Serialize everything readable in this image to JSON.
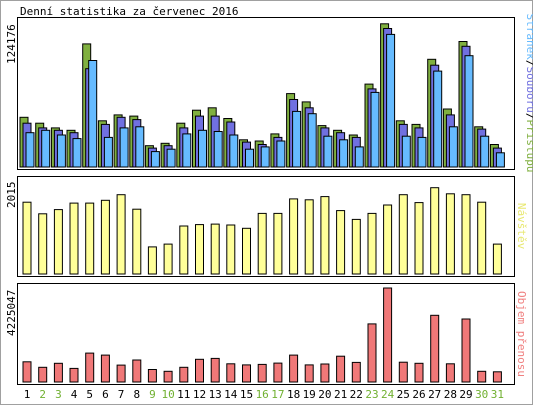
{
  "title": "Denní statistika za červenec 2016",
  "chart_data": [
    {
      "type": "bar",
      "panel": "top",
      "ymax_label": "124176",
      "side_label_parts": [
        "Stránek",
        "/",
        "Souborů",
        "/",
        "Přístupů"
      ],
      "categories": [
        "1",
        "2",
        "3",
        "4",
        "5",
        "6",
        "7",
        "8",
        "9",
        "10",
        "11",
        "12",
        "13",
        "14",
        "15",
        "16",
        "17",
        "18",
        "19",
        "20",
        "21",
        "22",
        "23",
        "24",
        "25",
        "26",
        "27",
        "28",
        "29",
        "30",
        "31"
      ],
      "series": [
        {
          "name": "Přístupů",
          "color": "#80b040",
          "values": [
            42000,
            37000,
            33000,
            31000,
            104000,
            39000,
            44000,
            43000,
            18000,
            20000,
            37000,
            48000,
            50000,
            41000,
            23000,
            22000,
            28000,
            62000,
            55000,
            35000,
            31000,
            27000,
            70000,
            121000,
            39000,
            36000,
            91000,
            49000,
            106000,
            34000,
            19000
          ]
        },
        {
          "name": "Souborů",
          "color": "#7070e0",
          "values": [
            37000,
            33000,
            31000,
            29000,
            83000,
            36000,
            42000,
            40000,
            16000,
            18000,
            33000,
            43000,
            43000,
            38000,
            21000,
            19000,
            25000,
            57000,
            50000,
            33000,
            29000,
            25000,
            66000,
            117000,
            36000,
            33000,
            86000,
            44000,
            102000,
            32000,
            16000
          ]
        },
        {
          "name": "Stránek",
          "color": "#66bbff",
          "values": [
            29000,
            31000,
            27000,
            24000,
            90000,
            25000,
            33000,
            34000,
            13000,
            15000,
            28000,
            31000,
            30000,
            27000,
            15000,
            17000,
            22000,
            47000,
            45000,
            26000,
            23000,
            17000,
            63000,
            112000,
            26000,
            25000,
            81000,
            34000,
            94000,
            26000,
            12000
          ]
        }
      ]
    },
    {
      "type": "bar",
      "panel": "middle",
      "ymax_label": "2015",
      "side_label": "Návštěv",
      "categories": [
        "1",
        "2",
        "3",
        "4",
        "5",
        "6",
        "7",
        "8",
        "9",
        "10",
        "11",
        "12",
        "13",
        "14",
        "15",
        "16",
        "17",
        "18",
        "19",
        "20",
        "21",
        "22",
        "23",
        "24",
        "25",
        "26",
        "27",
        "28",
        "29",
        "30",
        "31"
      ],
      "series": [
        {
          "name": "Návštěv",
          "color": "#ffff99",
          "values": [
            1540,
            1290,
            1380,
            1520,
            1520,
            1580,
            1700,
            1390,
            580,
            640,
            1030,
            1060,
            1070,
            1050,
            980,
            1300,
            1300,
            1610,
            1590,
            1660,
            1360,
            1170,
            1300,
            1480,
            1700,
            1530,
            1850,
            1720,
            1700,
            1540,
            640
          ]
        }
      ]
    },
    {
      "type": "bar",
      "panel": "bottom",
      "ymax_label": "4225047",
      "side_label": "Objem přenosu",
      "categories": [
        "1",
        "2",
        "3",
        "4",
        "5",
        "6",
        "7",
        "8",
        "9",
        "10",
        "11",
        "12",
        "13",
        "14",
        "15",
        "16",
        "17",
        "18",
        "19",
        "20",
        "21",
        "22",
        "23",
        "24",
        "25",
        "26",
        "27",
        "28",
        "29",
        "30",
        "31"
      ],
      "series": [
        {
          "name": "Objem přenosu",
          "color": "#f07878",
          "values": [
            910000,
            660000,
            840000,
            610000,
            1300000,
            1210000,
            760000,
            990000,
            560000,
            480000,
            660000,
            1020000,
            1060000,
            820000,
            770000,
            790000,
            850000,
            1210000,
            770000,
            810000,
            1160000,
            880000,
            2610000,
            4225047,
            890000,
            840000,
            3000000,
            820000,
            2830000,
            480000,
            460000
          ]
        }
      ]
    }
  ],
  "x_axis": {
    "weekend_days": [
      "2",
      "3",
      "9",
      "10",
      "16",
      "17",
      "23",
      "24",
      "30",
      "31"
    ],
    "weekday_color": "#000000",
    "weekend_color": "#70b030"
  },
  "colors": {
    "panel_border": "#000000",
    "frame_border": "#a0a0a0",
    "bar_outline": "#000000"
  }
}
